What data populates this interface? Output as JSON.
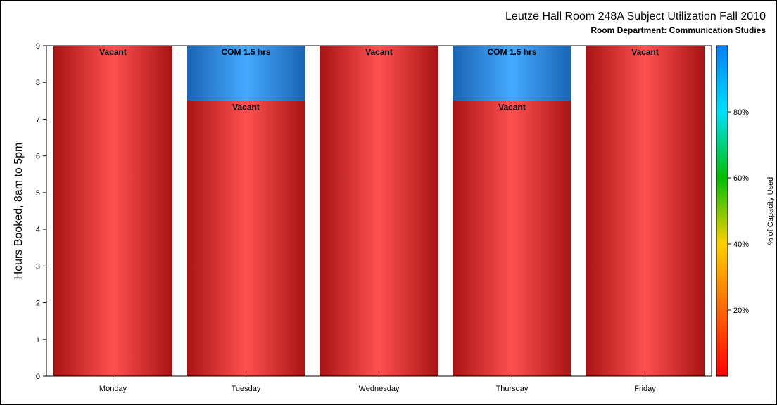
{
  "chart_data": {
    "type": "bar",
    "stacked": true,
    "title": "Leutze Hall Room 248A Subject Utilization Fall 2010",
    "subtitle": "Room Department:  Communication Studies",
    "xlabel": "",
    "ylabel": "Hours Booked, 8am to 5pm",
    "ylim": [
      0,
      9
    ],
    "yticks": [
      "0",
      "1",
      "2",
      "3",
      "4",
      "5",
      "6",
      "7",
      "8",
      "9"
    ],
    "categories": [
      "Monday",
      "Tuesday",
      "Wednesday",
      "Thursday",
      "Friday"
    ],
    "bars": [
      {
        "category": "Monday",
        "segments": [
          {
            "label": "Vacant",
            "value": 9,
            "kind": "vacant"
          }
        ]
      },
      {
        "category": "Tuesday",
        "segments": [
          {
            "label": "Vacant",
            "value": 7.5,
            "kind": "vacant"
          },
          {
            "label": "COM 1.5 hrs",
            "value": 1.5,
            "kind": "used"
          }
        ]
      },
      {
        "category": "Wednesday",
        "segments": [
          {
            "label": "Vacant",
            "value": 9,
            "kind": "vacant"
          }
        ]
      },
      {
        "category": "Thursday",
        "segments": [
          {
            "label": "Vacant",
            "value": 7.5,
            "kind": "vacant"
          },
          {
            "label": "COM 1.5 hrs",
            "value": 1.5,
            "kind": "used"
          }
        ]
      },
      {
        "category": "Friday",
        "segments": [
          {
            "label": "Vacant",
            "value": 9,
            "kind": "vacant"
          }
        ]
      }
    ],
    "colorbar": {
      "label": "% of Capacity Used",
      "range": [
        0,
        100
      ],
      "ticks": [
        "20%",
        "40%",
        "60%",
        "80%"
      ],
      "tick_values": [
        20,
        40,
        60,
        80
      ],
      "colors": [
        "#ff0000",
        "#ff6600",
        "#ffd000",
        "#00c000",
        "#00e0ff",
        "#0080ff"
      ]
    },
    "colors": {
      "vacant_edge": "#a81414",
      "vacant_center": "#ff5050",
      "used_edge": "#1a64b4",
      "used_center": "#44aaff"
    },
    "grid": false
  }
}
